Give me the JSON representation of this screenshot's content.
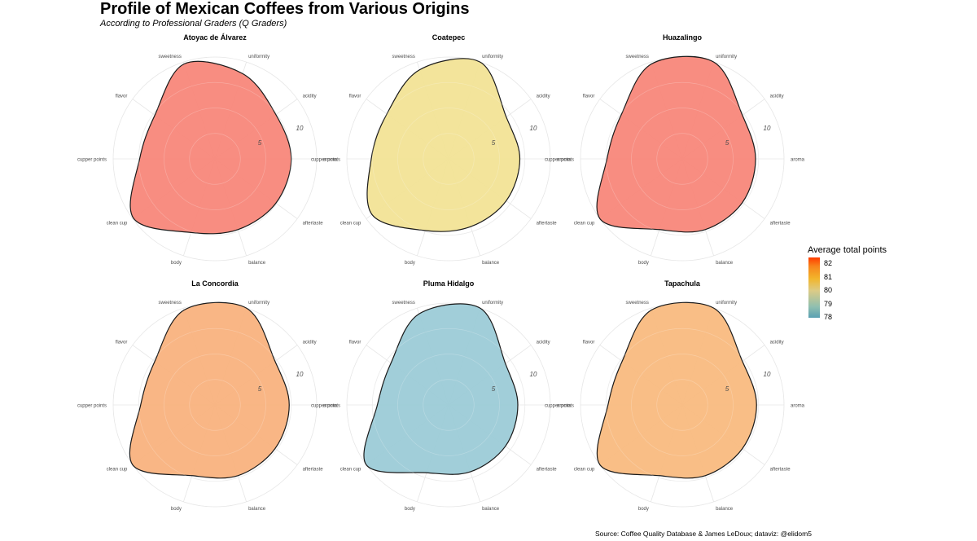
{
  "title": "Profile of Mexican Coffees from Various Origins",
  "subtitle": "According to Professional Graders (Q Graders)",
  "caption": "Source: Coffee Quality Database & James LeDoux;  dataviz: @elidom5",
  "legend": {
    "title": "Average total points",
    "ticks": [
      "82",
      "81",
      "80",
      "79",
      "78"
    ]
  },
  "chart_data": {
    "type": "radar",
    "axes": [
      "aroma",
      "acidity",
      "uniformity",
      "sweetness",
      "flavor",
      "cupper points",
      "clean cup",
      "body",
      "balance",
      "aftertaste"
    ],
    "radial_ticks": [
      "5",
      "10"
    ],
    "rmax": 10,
    "legend_placement": "right",
    "color_scale_range": [
      78,
      82.3
    ],
    "panels": [
      {
        "name": "Atoyac de Álvarez",
        "avg_total_points": 82.3,
        "color": "#f8877a",
        "values": [
          7.5,
          7.4,
          8.8,
          9.8,
          7.3,
          7.4,
          9.9,
          7.6,
          7.3,
          7.4
        ]
      },
      {
        "name": "Coatepec",
        "avg_total_points": 80.0,
        "color": "#f2e396",
        "values": [
          7.0,
          7.0,
          10.0,
          9.2,
          7.5,
          7.6,
          9.3,
          7.4,
          7.0,
          7.0
        ]
      },
      {
        "name": "Huazalingo",
        "avg_total_points": 82.3,
        "color": "#f8877a",
        "values": [
          7.2,
          7.3,
          10.0,
          9.8,
          7.4,
          7.4,
          10.0,
          7.3,
          7.3,
          7.3
        ]
      },
      {
        "name": "La Concordia",
        "avg_total_points": 81.3,
        "color": "#f9b27e",
        "values": [
          7.3,
          7.3,
          10.0,
          9.8,
          7.3,
          7.3,
          10.0,
          7.3,
          7.3,
          7.3
        ]
      },
      {
        "name": "Pluma Hidalgo",
        "avg_total_points": 78.0,
        "color": "#9ccbd7",
        "values": [
          6.8,
          6.9,
          10.0,
          9.4,
          7.0,
          7.0,
          10.0,
          7.0,
          6.9,
          6.9
        ]
      },
      {
        "name": "Tapachula",
        "avg_total_points": 81.0,
        "color": "#f9bb80",
        "values": [
          7.3,
          7.3,
          10.0,
          9.8,
          7.3,
          7.3,
          10.0,
          7.3,
          7.3,
          7.3
        ]
      }
    ]
  }
}
